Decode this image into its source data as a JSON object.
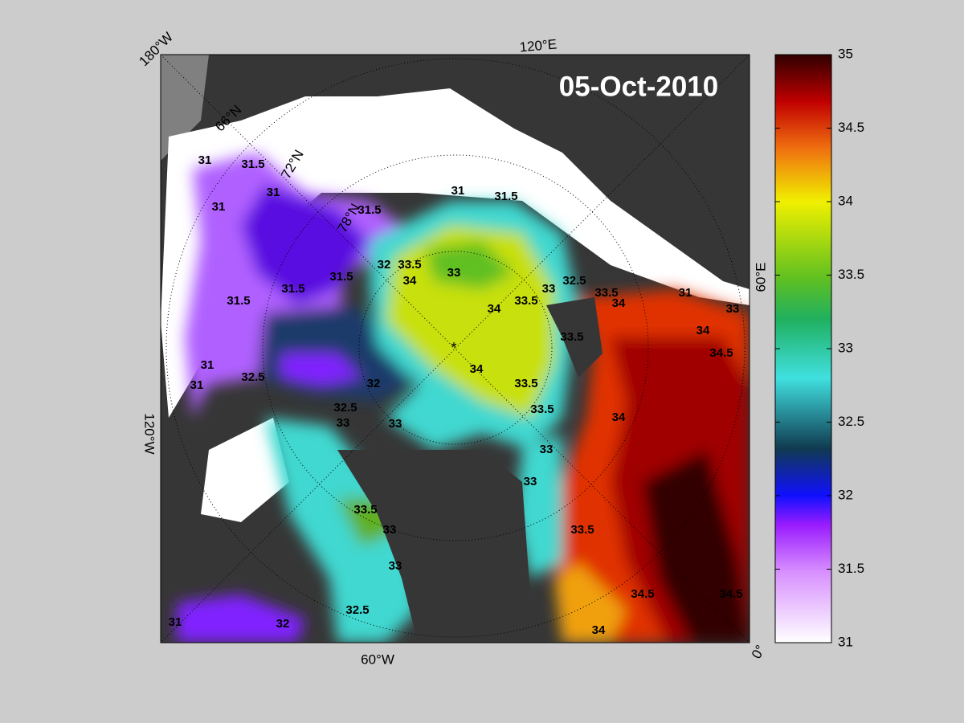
{
  "map": {
    "date": "05-Oct-2010",
    "graticule_labels": [
      "180°W",
      "120°E",
      "60°E",
      "0°",
      "60°W",
      "120°W",
      "66°N",
      "72°N",
      "78°N"
    ],
    "contour_labels": [
      31,
      31.5,
      31,
      31,
      31.5,
      31,
      31.5,
      33,
      32,
      33.5,
      34,
      31.5,
      31.5,
      31.5,
      34,
      33.5,
      33,
      32.5,
      33.5,
      34,
      31,
      33,
      34,
      34.5,
      33.5,
      34,
      33.5,
      32,
      31,
      32.5,
      31,
      32.5,
      33,
      33,
      33.5,
      34,
      33,
      33,
      33.5,
      33,
      33.5,
      33,
      34.5,
      34.5,
      32.5,
      32,
      31,
      34
    ]
  },
  "colorbar": {
    "lim": [
      31,
      35
    ],
    "ticks": [
      31,
      31.5,
      32,
      32.5,
      33,
      33.5,
      34,
      34.5,
      35
    ]
  }
}
